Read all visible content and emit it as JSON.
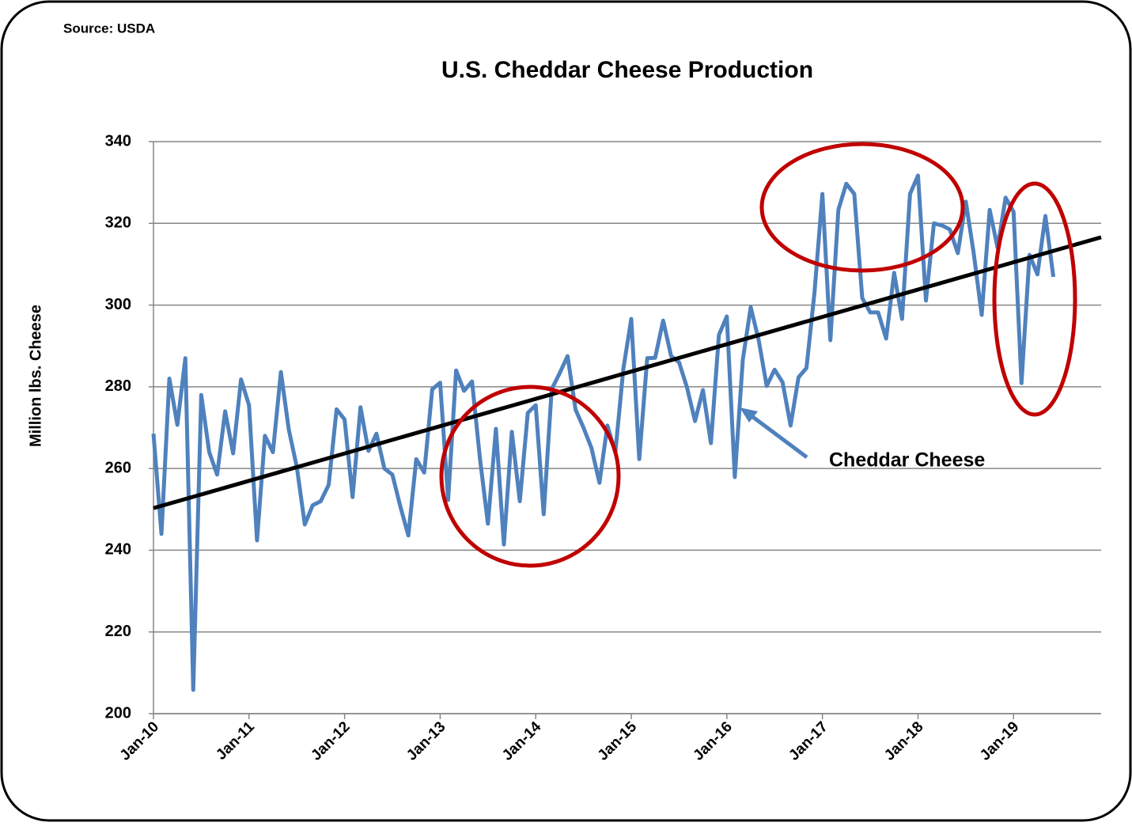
{
  "source": "Source: USDA",
  "chart_data": {
    "type": "line",
    "title": "U.S. Cheddar Cheese Production",
    "y_label": "Million lbs. Cheese",
    "annotation": "Cheddar Cheese",
    "categories": [
      "Jan-10",
      null,
      null,
      null,
      null,
      null,
      null,
      null,
      null,
      null,
      null,
      null,
      "Jan-11",
      null,
      null,
      null,
      null,
      null,
      null,
      null,
      null,
      null,
      null,
      null,
      "Jan-12",
      null,
      null,
      null,
      null,
      null,
      null,
      null,
      null,
      null,
      null,
      null,
      "Jan-13",
      null,
      null,
      null,
      null,
      null,
      null,
      null,
      null,
      null,
      null,
      null,
      "Jan-14",
      null,
      null,
      null,
      null,
      null,
      null,
      null,
      null,
      null,
      null,
      null,
      "Jan-15",
      null,
      null,
      null,
      null,
      null,
      null,
      null,
      null,
      null,
      null,
      null,
      "Jan-16",
      null,
      null,
      null,
      null,
      null,
      null,
      null,
      null,
      null,
      null,
      null,
      "Jan-17",
      null,
      null,
      null,
      null,
      null,
      null,
      null,
      null,
      null,
      null,
      null,
      "Jan-18",
      null,
      null,
      null,
      null,
      null,
      null,
      null,
      null,
      null,
      null,
      null,
      "Jan-19",
      null,
      null,
      null,
      null,
      null,
      null,
      null,
      null,
      null,
      null,
      null
    ],
    "series": [
      {
        "name": "Cheddar Cheese",
        "color": "#4f81bd",
        "values": [
          268.5,
          244,
          282,
          270.7,
          287,
          205.8,
          278,
          264,
          258.5,
          274,
          263.7,
          281.8,
          275.5,
          242.4,
          268,
          264,
          283.6,
          269.5,
          260.4,
          246.3,
          251,
          252,
          256,
          274.5,
          272,
          253,
          275,
          264.3,
          268.5,
          260,
          258.5,
          250.7,
          243.6,
          262.3,
          259,
          279.4,
          281,
          252.3,
          284,
          279,
          281.3,
          262.3,
          246.5,
          269.7,
          241.4,
          269,
          252,
          273.6,
          275.5,
          248.8,
          279.4,
          283.3,
          287.5,
          274.4,
          270,
          265,
          256.5,
          270.5,
          264,
          284.4,
          296.6,
          262.3,
          287,
          287.1,
          296.2,
          287.5,
          286,
          279.8,
          271.6,
          279.2,
          266.2,
          292.7,
          297.2,
          257.9,
          286.6,
          299.5,
          291.4,
          280.2,
          284.2,
          281.1,
          270.5,
          282.3,
          284.6,
          303,
          327.2,
          291.4,
          323.3,
          329.7,
          327.2,
          301.7,
          298.2,
          298.2,
          291.8,
          307.9,
          296.6,
          327.2,
          331.7,
          301.1,
          320,
          319.5,
          318.5,
          312.7,
          325.3,
          312.7,
          297.6,
          323.3,
          314,
          326.3,
          322.8,
          280.9,
          312.3,
          307.5,
          321.8,
          306.9,
          null,
          null,
          null,
          null,
          null,
          null
        ]
      }
    ],
    "trend": {
      "color": "#000000",
      "values": [
        250.3,
        316.6
      ]
    },
    "ylim": [
      200,
      340
    ],
    "yticks": [
      200,
      220,
      240,
      260,
      280,
      300,
      320,
      340
    ],
    "grid": true
  }
}
